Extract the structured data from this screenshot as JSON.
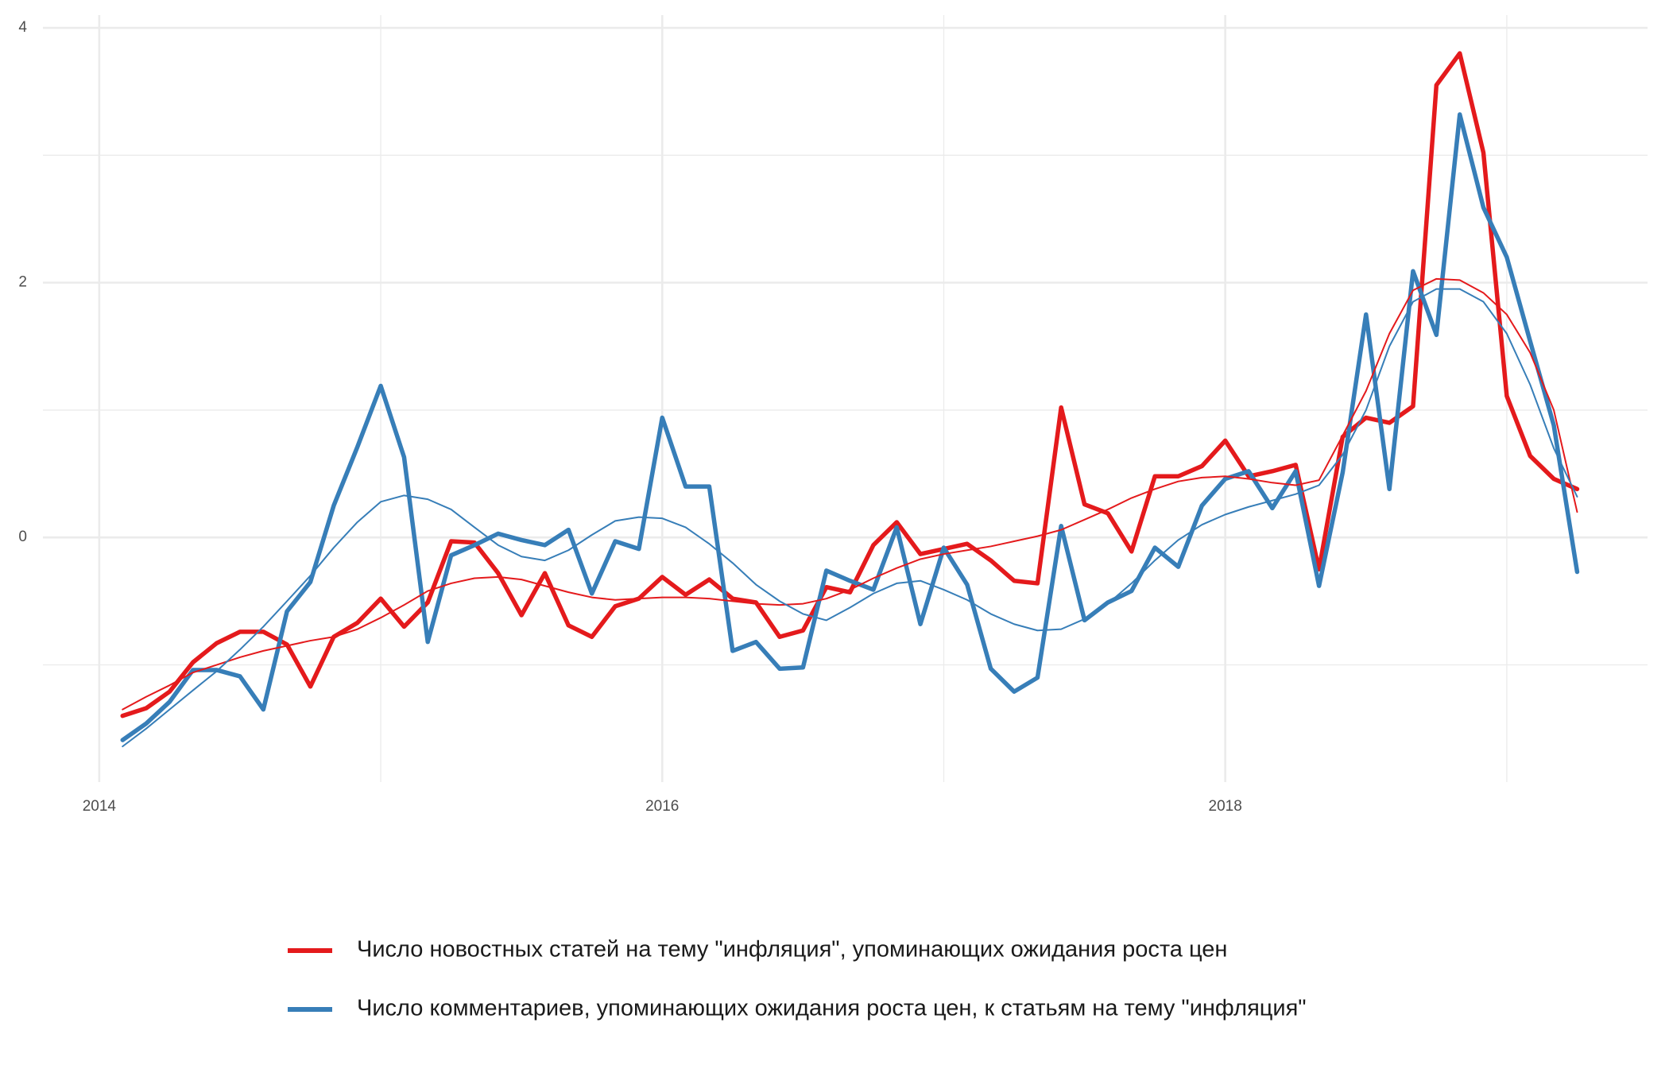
{
  "chart_data": {
    "type": "line",
    "x": [
      2014.083,
      2014.167,
      2014.25,
      2014.333,
      2014.417,
      2014.5,
      2014.583,
      2014.667,
      2014.75,
      2014.833,
      2014.917,
      2015,
      2015.083,
      2015.167,
      2015.25,
      2015.333,
      2015.417,
      2015.5,
      2015.583,
      2015.667,
      2015.75,
      2015.833,
      2015.917,
      2016,
      2016.083,
      2016.167,
      2016.25,
      2016.333,
      2016.417,
      2016.5,
      2016.583,
      2016.667,
      2016.75,
      2016.833,
      2016.917,
      2017,
      2017.083,
      2017.167,
      2017.25,
      2017.333,
      2017.417,
      2017.5,
      2017.583,
      2017.667,
      2017.75,
      2017.833,
      2017.917,
      2018,
      2018.083,
      2018.167,
      2018.25,
      2018.333,
      2018.417,
      2018.5,
      2018.583,
      2018.667,
      2018.75,
      2018.833,
      2018.917,
      2019,
      2019.083,
      2019.167,
      2019.25
    ],
    "series": [
      {
        "name": "Число новостных статей на тему \"инфляция\", упоминающих ожидания роста цен",
        "color": "#e41a1c",
        "linewidth": 5.5,
        "values": [
          -1.4,
          -1.34,
          -1.21,
          -0.98,
          -0.83,
          -0.74,
          -0.74,
          -0.84,
          -1.17,
          -0.78,
          -0.67,
          -0.48,
          -0.7,
          -0.51,
          -0.03,
          -0.04,
          -0.28,
          -0.61,
          -0.28,
          -0.69,
          -0.78,
          -0.54,
          -0.48,
          -0.31,
          -0.45,
          -0.33,
          -0.48,
          -0.51,
          -0.78,
          -0.73,
          -0.39,
          -0.43,
          -0.06,
          0.12,
          -0.13,
          -0.09,
          -0.05,
          -0.18,
          -0.34,
          -0.36,
          1.02,
          0.26,
          0.19,
          -0.11,
          0.48,
          0.48,
          0.56,
          0.76,
          0.48,
          0.52,
          0.57,
          -0.25,
          0.79,
          0.94,
          0.9,
          1.03,
          3.55,
          3.8,
          3.02,
          1.11,
          0.64,
          0.46,
          0.38
        ]
      },
      {
        "name": "Число комментариев, упоминающих ожидания роста цен, к статьям на тему \"инфляция\"",
        "color": "#377eb8",
        "linewidth": 5.5,
        "values": [
          -1.59,
          -1.46,
          -1.29,
          -1.04,
          -1.04,
          -1.09,
          -1.35,
          -0.58,
          -0.35,
          0.25,
          0.71,
          1.19,
          0.63,
          -0.82,
          -0.14,
          -0.06,
          0.03,
          -0.02,
          -0.06,
          0.06,
          -0.44,
          -0.03,
          -0.09,
          0.94,
          0.4,
          0.4,
          -0.89,
          -0.82,
          -1.03,
          -1.02,
          -0.26,
          -0.34,
          -0.41,
          0.08,
          -0.68,
          -0.08,
          -0.37,
          -1.03,
          -1.21,
          -1.1,
          0.09,
          -0.65,
          -0.51,
          -0.42,
          -0.08,
          -0.23,
          0.25,
          0.46,
          0.52,
          0.23,
          0.52,
          -0.38,
          0.51,
          1.75,
          0.38,
          2.09,
          1.59,
          3.32,
          2.59,
          2.2,
          1.54,
          0.88,
          -0.27
        ]
      },
      {
        "color": "#e41a1c",
        "linewidth": 2,
        "values": [
          -1.35,
          -1.25,
          -1.16,
          -1.06,
          -1.0,
          -0.94,
          -0.89,
          -0.85,
          -0.81,
          -0.78,
          -0.72,
          -0.63,
          -0.53,
          -0.42,
          -0.36,
          -0.32,
          -0.31,
          -0.33,
          -0.38,
          -0.43,
          -0.47,
          -0.49,
          -0.48,
          -0.47,
          -0.47,
          -0.48,
          -0.5,
          -0.52,
          -0.53,
          -0.52,
          -0.48,
          -0.41,
          -0.32,
          -0.24,
          -0.17,
          -0.13,
          -0.1,
          -0.07,
          -0.03,
          0.01,
          0.06,
          0.14,
          0.22,
          0.31,
          0.38,
          0.44,
          0.47,
          0.48,
          0.46,
          0.43,
          0.41,
          0.45,
          0.8,
          1.15,
          1.6,
          1.94,
          2.03,
          2.02,
          1.92,
          1.75,
          1.45,
          1.0,
          0.2
        ]
      },
      {
        "color": "#377eb8",
        "linewidth": 2,
        "values": [
          -1.64,
          -1.5,
          -1.35,
          -1.2,
          -1.05,
          -0.88,
          -0.7,
          -0.5,
          -0.3,
          -0.08,
          0.12,
          0.28,
          0.33,
          0.3,
          0.22,
          0.08,
          -0.06,
          -0.15,
          -0.18,
          -0.1,
          0.02,
          0.13,
          0.16,
          0.15,
          0.08,
          -0.05,
          -0.2,
          -0.37,
          -0.5,
          -0.6,
          -0.65,
          -0.55,
          -0.44,
          -0.36,
          -0.34,
          -0.41,
          -0.49,
          -0.6,
          -0.68,
          -0.73,
          -0.72,
          -0.64,
          -0.52,
          -0.36,
          -0.18,
          -0.02,
          0.1,
          0.18,
          0.24,
          0.29,
          0.34,
          0.41,
          0.65,
          1.0,
          1.5,
          1.85,
          1.95,
          1.95,
          1.85,
          1.6,
          1.2,
          0.7,
          0.32
        ]
      }
    ],
    "xlim": [
      2013.8,
      2019.5
    ],
    "xticks": [
      2014,
      2016,
      2018
    ],
    "xminor": [
      2015,
      2017,
      2019
    ],
    "ylim": [
      -1.92,
      4.1
    ],
    "yticks": [
      0,
      2,
      4
    ],
    "yminor": [
      -1,
      1,
      3
    ],
    "grid": true,
    "legend": "bottom"
  }
}
